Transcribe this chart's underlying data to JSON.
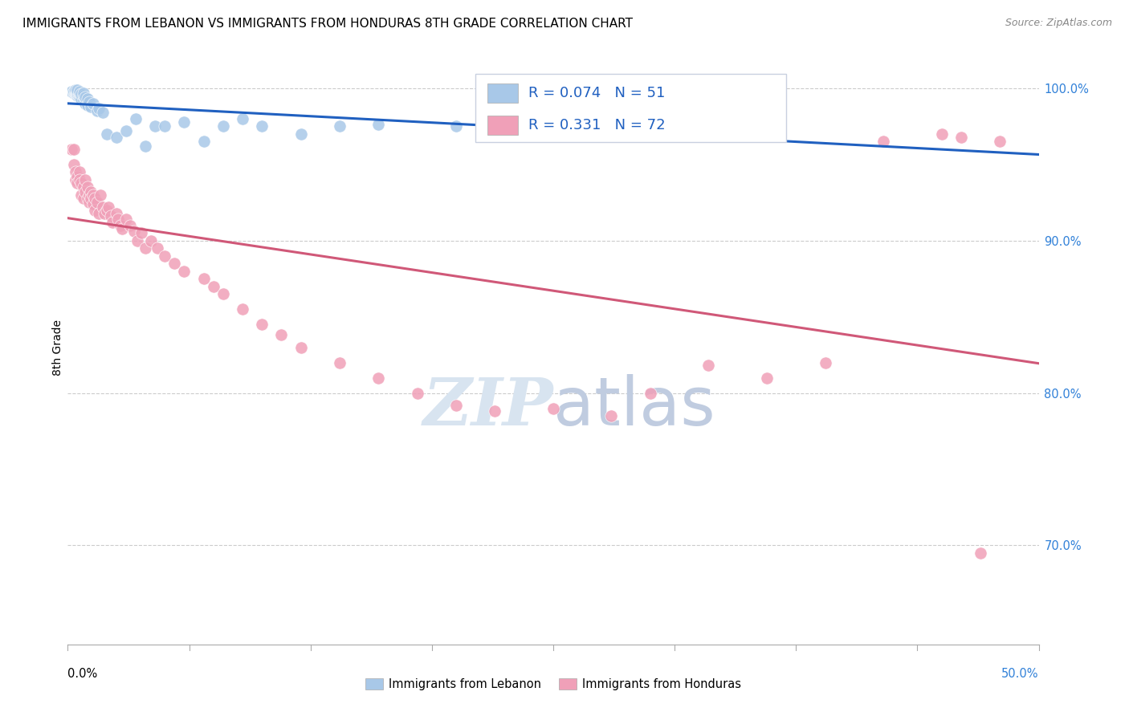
{
  "title": "IMMIGRANTS FROM LEBANON VS IMMIGRANTS FROM HONDURAS 8TH GRADE CORRELATION CHART",
  "source": "Source: ZipAtlas.com",
  "ylabel": "8th Grade",
  "y_tick_values": [
    0.7,
    0.8,
    0.9,
    1.0
  ],
  "y_tick_labels": [
    "70.0%",
    "80.0%",
    "90.0%",
    "100.0%"
  ],
  "x_min": 0.0,
  "x_max": 0.5,
  "y_min": 0.635,
  "y_max": 1.025,
  "lebanon_R": 0.074,
  "lebanon_N": 51,
  "honduras_R": 0.331,
  "honduras_N": 72,
  "lebanon_color": "#a8c8e8",
  "honduras_color": "#f0a0b8",
  "lebanon_line_color": "#2060c0",
  "honduras_line_color": "#d05878",
  "lebanon_x": [
    0.002,
    0.003,
    0.003,
    0.003,
    0.004,
    0.004,
    0.004,
    0.004,
    0.005,
    0.005,
    0.005,
    0.005,
    0.005,
    0.006,
    0.006,
    0.006,
    0.006,
    0.007,
    0.007,
    0.008,
    0.008,
    0.008,
    0.009,
    0.009,
    0.01,
    0.01,
    0.011,
    0.012,
    0.013,
    0.015,
    0.016,
    0.018,
    0.02,
    0.025,
    0.03,
    0.035,
    0.04,
    0.045,
    0.05,
    0.06,
    0.07,
    0.08,
    0.09,
    0.1,
    0.12,
    0.14,
    0.16,
    0.2,
    0.24,
    0.29,
    0.31
  ],
  "lebanon_y": [
    0.998,
    0.998,
    0.997,
    0.998,
    0.996,
    0.997,
    0.998,
    0.999,
    0.995,
    0.996,
    0.997,
    0.998,
    0.999,
    0.994,
    0.996,
    0.997,
    0.998,
    0.993,
    0.996,
    0.992,
    0.995,
    0.997,
    0.99,
    0.994,
    0.989,
    0.993,
    0.991,
    0.988,
    0.99,
    0.985,
    0.987,
    0.984,
    0.97,
    0.968,
    0.972,
    0.98,
    0.962,
    0.975,
    0.975,
    0.978,
    0.965,
    0.975,
    0.98,
    0.975,
    0.97,
    0.975,
    0.976,
    0.975,
    0.978,
    0.985,
    0.985
  ],
  "honduras_x": [
    0.002,
    0.003,
    0.003,
    0.004,
    0.004,
    0.005,
    0.005,
    0.006,
    0.006,
    0.007,
    0.007,
    0.008,
    0.008,
    0.009,
    0.009,
    0.01,
    0.01,
    0.011,
    0.011,
    0.012,
    0.012,
    0.013,
    0.013,
    0.014,
    0.014,
    0.015,
    0.016,
    0.017,
    0.018,
    0.019,
    0.02,
    0.021,
    0.022,
    0.023,
    0.025,
    0.026,
    0.027,
    0.028,
    0.03,
    0.032,
    0.034,
    0.036,
    0.038,
    0.04,
    0.043,
    0.046,
    0.05,
    0.055,
    0.06,
    0.07,
    0.075,
    0.08,
    0.09,
    0.1,
    0.11,
    0.12,
    0.14,
    0.16,
    0.18,
    0.2,
    0.22,
    0.25,
    0.28,
    0.3,
    0.33,
    0.36,
    0.39,
    0.42,
    0.45,
    0.46,
    0.47,
    0.48
  ],
  "honduras_y": [
    0.96,
    0.96,
    0.95,
    0.945,
    0.94,
    0.942,
    0.938,
    0.945,
    0.94,
    0.938,
    0.93,
    0.935,
    0.928,
    0.94,
    0.932,
    0.935,
    0.928,
    0.93,
    0.925,
    0.932,
    0.928,
    0.93,
    0.924,
    0.928,
    0.92,
    0.925,
    0.918,
    0.93,
    0.922,
    0.918,
    0.92,
    0.922,
    0.916,
    0.912,
    0.918,
    0.914,
    0.91,
    0.908,
    0.914,
    0.91,
    0.906,
    0.9,
    0.905,
    0.895,
    0.9,
    0.895,
    0.89,
    0.885,
    0.88,
    0.875,
    0.87,
    0.865,
    0.855,
    0.845,
    0.838,
    0.83,
    0.82,
    0.81,
    0.8,
    0.792,
    0.788,
    0.79,
    0.785,
    0.8,
    0.818,
    0.81,
    0.82,
    0.965,
    0.97,
    0.968,
    0.695,
    0.965
  ],
  "legend_box_bg": "#ffffff",
  "legend_box_edge": "#c8d0e0",
  "watermark_zip": "ZIP",
  "watermark_atlas": "atlas",
  "watermark_color": "#d8e4f0"
}
